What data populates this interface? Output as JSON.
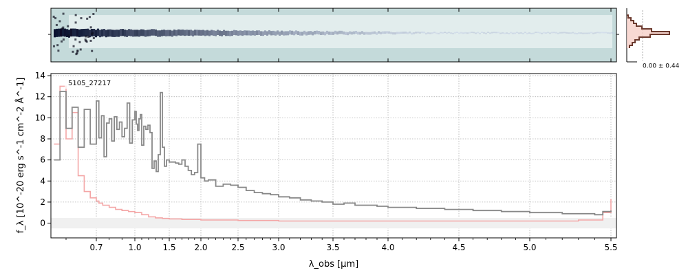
{
  "colors": {
    "flux": "#888888",
    "error": "#f4a6a6",
    "spectrum_bg": "#c4dada",
    "spectrum_trace": "#1a1a33",
    "profile_line": "#6b3a2e",
    "profile_fill": "#f6d0c8",
    "grid": "#b0b0b0"
  },
  "chart_data": [
    {
      "type": "heatmap",
      "name": "2d-spectrum",
      "xlim": [
        0.55,
        5.52
      ]
    },
    {
      "type": "line",
      "name": "spatial-profile",
      "annotation": "0.00 ± 0.44"
    },
    {
      "type": "line",
      "object_label": "5105_27217",
      "xlabel": "λ_obs [μm]",
      "ylabel": "f_λ [10^-20 erg s^-1 cm^-2 Å^-1]",
      "x_scale": "custom-nonlinear",
      "x_tick_labels": [
        "0.7",
        "1.0",
        "1.5",
        "2.0",
        "2.5",
        "3.0",
        "3.5",
        "4.0",
        "4.5",
        "5.0",
        "5.5"
      ],
      "x_tick_values": [
        0.7,
        1.0,
        1.5,
        2.0,
        2.5,
        3.0,
        3.5,
        4.0,
        4.5,
        5.0,
        5.5
      ],
      "xlim": [
        0.55,
        5.52
      ],
      "ylim": [
        -1.4,
        14.2
      ],
      "y_ticks": [
        0,
        2,
        4,
        6,
        8,
        10,
        12,
        14
      ],
      "grid": true,
      "series": [
        {
          "role": "flux",
          "x": [
            0.56,
            0.58,
            0.6,
            0.62,
            0.64,
            0.66,
            0.68,
            0.7,
            0.72,
            0.74,
            0.76,
            0.78,
            0.8,
            0.82,
            0.84,
            0.86,
            0.88,
            0.9,
            0.92,
            0.94,
            0.96,
            0.98,
            1.0,
            1.02,
            1.04,
            1.06,
            1.08,
            1.1,
            1.13,
            1.16,
            1.19,
            1.22,
            1.25,
            1.28,
            1.31,
            1.34,
            1.37,
            1.4,
            1.43,
            1.46,
            1.5,
            1.55,
            1.6,
            1.65,
            1.7,
            1.75,
            1.8,
            1.85,
            1.9,
            1.95,
            2.0,
            2.05,
            2.1,
            2.2,
            2.3,
            2.4,
            2.5,
            2.6,
            2.7,
            2.8,
            2.9,
            3.0,
            3.1,
            3.2,
            3.3,
            3.4,
            3.5,
            3.6,
            3.7,
            3.8,
            3.9,
            4.0,
            4.1,
            4.2,
            4.3,
            4.4,
            4.5,
            4.6,
            4.7,
            4.8,
            4.9,
            5.0,
            5.1,
            5.2,
            5.3,
            5.4,
            5.45,
            5.5
          ],
          "y": [
            6.0,
            12.5,
            9.0,
            11.0,
            7.2,
            10.8,
            7.5,
            11.6,
            8.1,
            10.2,
            6.3,
            9.5,
            9.9,
            7.8,
            10.1,
            8.9,
            9.6,
            8.2,
            9.0,
            11.4,
            7.6,
            9.8,
            10.6,
            9.4,
            8.8,
            9.9,
            10.3,
            7.4,
            9.2,
            8.9,
            9.3,
            8.6,
            5.2,
            5.9,
            4.9,
            6.5,
            12.4,
            7.2,
            5.4,
            6.0,
            5.8,
            5.8,
            5.7,
            5.6,
            6.0,
            5.4,
            5.0,
            4.6,
            4.8,
            7.5,
            4.3,
            4.0,
            4.1,
            3.5,
            3.7,
            3.6,
            3.4,
            3.1,
            2.9,
            2.8,
            2.7,
            2.5,
            2.4,
            2.2,
            2.1,
            2.0,
            1.8,
            1.9,
            1.7,
            1.7,
            1.6,
            1.5,
            1.5,
            1.4,
            1.4,
            1.3,
            1.3,
            1.2,
            1.2,
            1.1,
            1.1,
            1.0,
            1.0,
            0.9,
            0.9,
            0.8,
            1.1,
            1.2
          ]
        },
        {
          "role": "error",
          "x": [
            0.56,
            0.58,
            0.6,
            0.62,
            0.64,
            0.66,
            0.68,
            0.7,
            0.72,
            0.75,
            0.8,
            0.85,
            0.9,
            0.95,
            1.0,
            1.1,
            1.2,
            1.3,
            1.4,
            1.5,
            1.7,
            2.0,
            2.5,
            3.0,
            3.5,
            4.0,
            4.5,
            5.0,
            5.3,
            5.45,
            5.5
          ],
          "y": [
            7.5,
            13.0,
            8.0,
            10.5,
            4.5,
            3.0,
            2.4,
            2.1,
            1.9,
            1.7,
            1.5,
            1.3,
            1.2,
            1.1,
            1.0,
            0.8,
            0.6,
            0.5,
            0.45,
            0.4,
            0.35,
            0.3,
            0.25,
            0.2,
            0.2,
            0.2,
            0.2,
            0.2,
            0.3,
            1.0,
            2.3
          ]
        }
      ]
    }
  ]
}
